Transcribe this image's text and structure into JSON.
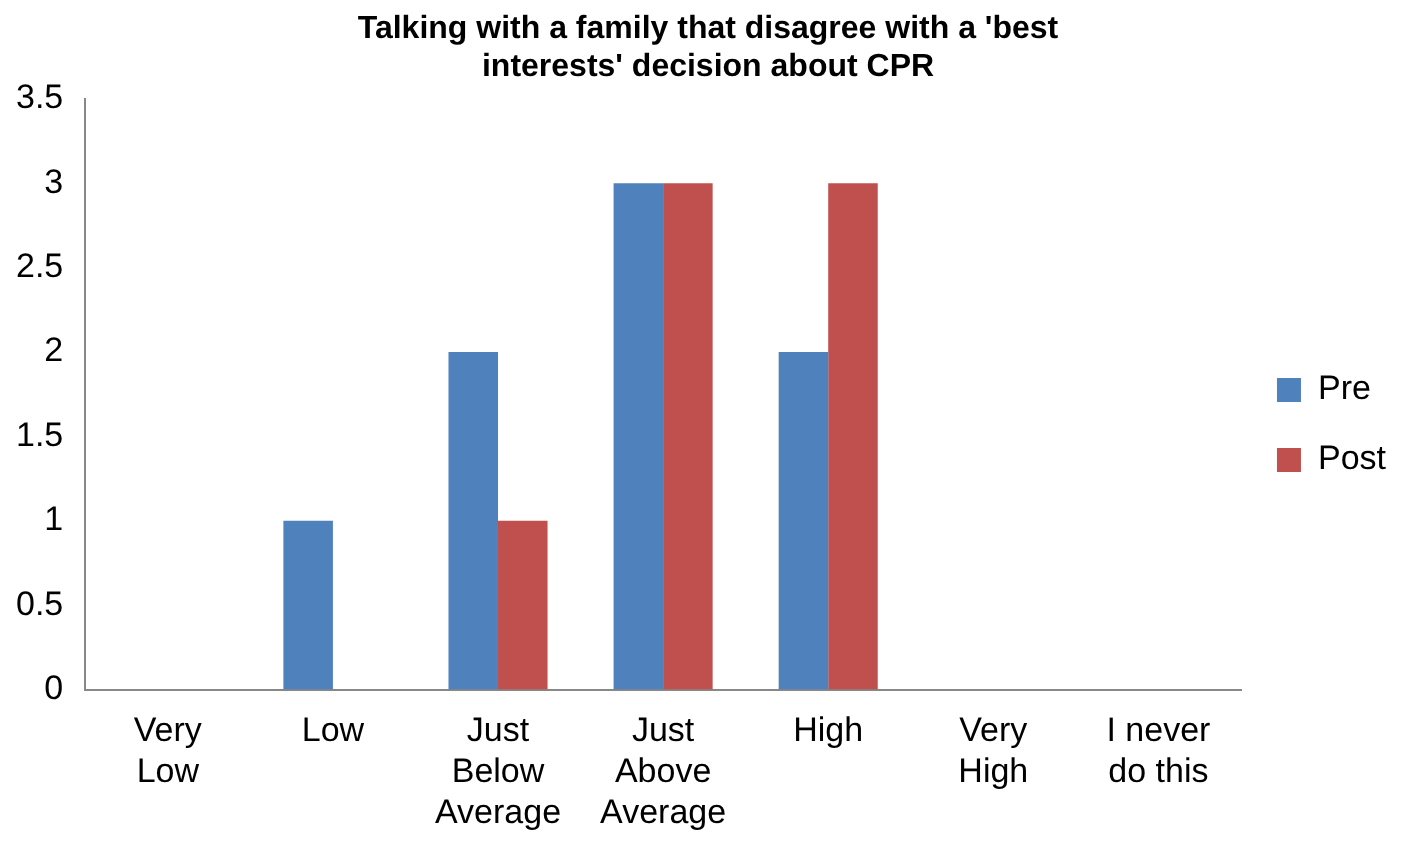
{
  "chart_data": {
    "type": "bar",
    "title": "Talking with a family that disagree with a 'best interests' decision about CPR",
    "categories": [
      "Very Low",
      "Low",
      "Just Below Average",
      "Just Above Average",
      "High",
      "Very High",
      "I never do this"
    ],
    "series": [
      {
        "name": "Pre",
        "color": "#4f81bd",
        "values": [
          0,
          1,
          2,
          3,
          2,
          0,
          0
        ]
      },
      {
        "name": "Post",
        "color": "#c0504d",
        "values": [
          0,
          0,
          1,
          3,
          3,
          0,
          0
        ]
      }
    ],
    "ylim": [
      0,
      3.5
    ],
    "yticks": [
      0,
      0.5,
      1,
      1.5,
      2,
      2.5,
      3,
      3.5
    ],
    "grid": false,
    "legend": "right"
  }
}
